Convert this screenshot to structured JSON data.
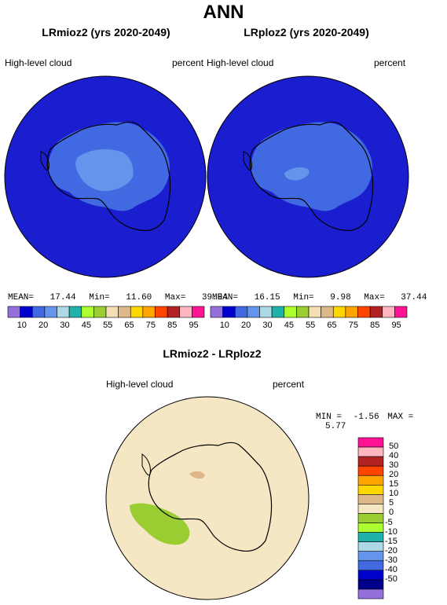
{
  "title": "ANN",
  "left_panel": {
    "title": "LRmioz2 (yrs 2020-2049)",
    "variable": "High-level cloud",
    "units": "percent",
    "mean_label": "MEAN=",
    "mean": "17.44",
    "min_label": "Min=",
    "min": "11.60",
    "max_label": "Max=",
    "max": "39.94"
  },
  "right_panel": {
    "title": "LRploz2 (yrs 2020-2049)",
    "variable": "High-level cloud",
    "units": "percent",
    "mean_label": "MEAN=",
    "mean": "16.15",
    "min_label": "Min=",
    "min": "9.98",
    "max_label": "Max=",
    "max": "37.44"
  },
  "top_colorbar": {
    "colors": [
      "#9370db",
      "#0000cd",
      "#4169e1",
      "#6495ed",
      "#add8e6",
      "#20b2aa",
      "#adff2f",
      "#9acd32",
      "#f5deb3",
      "#deb887",
      "#ffd700",
      "#ffa500",
      "#ff4500",
      "#b22222",
      "#ffb6c1",
      "#ff1493"
    ],
    "ticks": [
      "10",
      "30",
      "45",
      "55",
      "65",
      "75",
      "85",
      "95"
    ],
    "ticks_between": [
      "",
      "20",
      "",
      "",
      "",
      "",
      "",
      ""
    ]
  },
  "top_ticks": [
    "10",
    "20",
    "30",
    "45",
    "55",
    "65",
    "75",
    "85",
    "95"
  ],
  "diff_panel": {
    "title": "LRmioz2 - LRploz2",
    "variable": "High-level cloud",
    "units": "percent",
    "min_label": "MIN =",
    "min": "-1.56",
    "max_label": "MAX =",
    "max": "5.77"
  },
  "diff_colorbar": {
    "colors": [
      "#9370db",
      "#00008b",
      "#0000cd",
      "#4169e1",
      "#6495ed",
      "#add8e6",
      "#20b2aa",
      "#adff2f",
      "#9acd32",
      "#f5e6c4",
      "#deb887",
      "#ffd700",
      "#ffa500",
      "#ff4500",
      "#b22222",
      "#ffb6c1",
      "#ff1493"
    ],
    "ticks": [
      "50",
      "40",
      "30",
      "20",
      "15",
      "10",
      "5",
      "0",
      "-5",
      "-10",
      "-15",
      "-20",
      "-30",
      "-40",
      "-50"
    ]
  },
  "map_colors": {
    "ocean": "#1a1ecf",
    "plateau_mid": "#4169e1",
    "plateau_high": "#6495ed",
    "diff_bg": "#f5e6c4",
    "diff_green": "#9acd32",
    "diff_tan": "#deb887"
  }
}
